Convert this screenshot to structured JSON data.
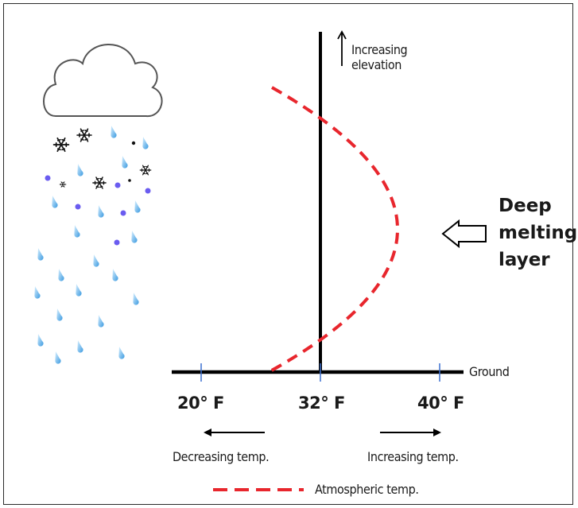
{
  "labels": {
    "increasing_elevation": [
      "Increasing",
      "elevation"
    ],
    "deep_melting_layer": [
      "Deep",
      "melting",
      "layer"
    ],
    "ground": "Ground",
    "ticks": [
      "20° F",
      "32° F",
      "40° F"
    ],
    "decreasing_temp": "Decreasing temp.",
    "increasing_temp": "Increasing temp.",
    "legend_atmospheric": "Atmospheric temp."
  },
  "colors": {
    "temperature_curve": "#e8262d",
    "raindrop": "#5aaee6",
    "sleet_pellet": "#6a5cf0",
    "axis": "#000000"
  },
  "icons": [
    "cloud-icon",
    "snowflake-icon",
    "raindrop-icon",
    "sleet-pellet-icon",
    "hollow-arrow-icon"
  ]
}
